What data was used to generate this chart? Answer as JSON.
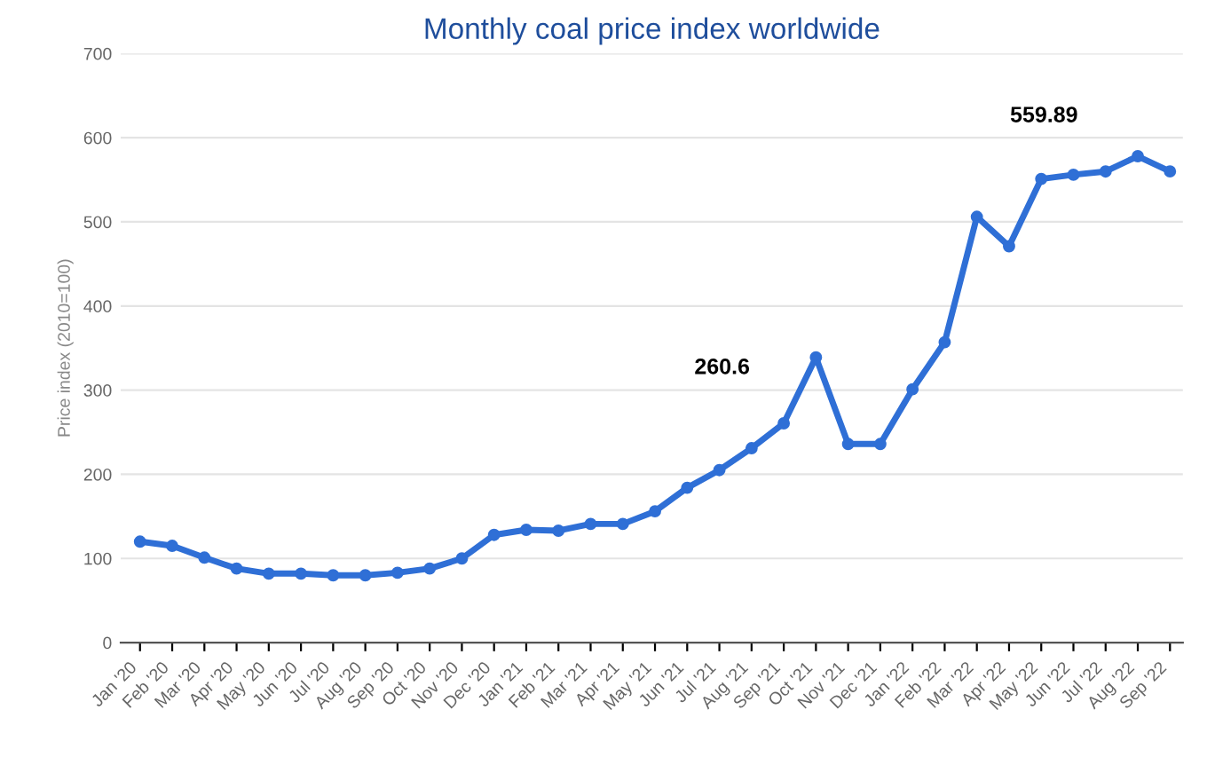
{
  "chart_data": {
    "type": "line",
    "title": "Monthly coal price index worldwide",
    "ylabel": "Price index (2010=100)",
    "categories": [
      "Jan '20",
      "Feb '20",
      "Mar '20",
      "Apr '20",
      "May '20",
      "Jun '20",
      "Jul '20",
      "Aug '20",
      "Sep '20",
      "Oct '20",
      "Nov '20",
      "Dec '20",
      "Jan '21",
      "Feb '21",
      "Mar '21",
      "Apr '21",
      "May '21",
      "Jun '21",
      "Jul '21",
      "Aug '21",
      "Sep '21",
      "Oct '21",
      "Nov '21",
      "Dec '21",
      "Jan '22",
      "Feb '22",
      "Mar '22",
      "Apr '22",
      "May '22",
      "Jun '22",
      "Jul '22",
      "Aug '22",
      "Sep '22"
    ],
    "series": [
      {
        "color": "#2f6fd6",
        "values": [
          120,
          115,
          101,
          88,
          82,
          82,
          80,
          80,
          83,
          88,
          100,
          128,
          134,
          133,
          141,
          141,
          156,
          184,
          205,
          231,
          260.6,
          339,
          236,
          236,
          301,
          357,
          506,
          471,
          551,
          556,
          559.89,
          578,
          560
        ]
      }
    ],
    "annotations": [
      {
        "text": "260.6",
        "x": "Sep '21",
        "y": 260.6
      },
      {
        "text": "559.89",
        "x": "Jul '22",
        "y": 559.89
      }
    ],
    "ylim": [
      0,
      700
    ],
    "yticks": [
      0,
      100,
      200,
      300,
      400,
      500,
      600,
      700
    ],
    "grid": "y",
    "marker": "circle",
    "line_style": "solid"
  }
}
